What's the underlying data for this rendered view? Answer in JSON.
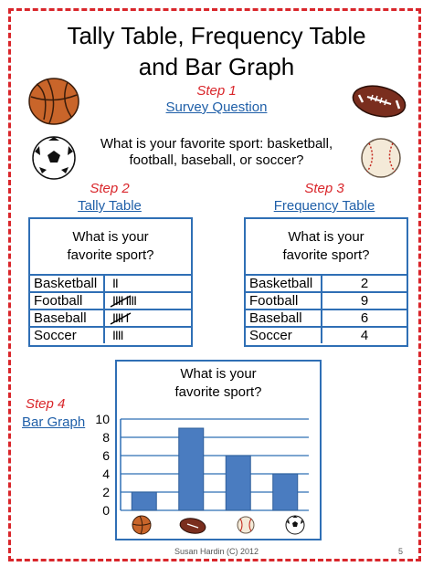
{
  "header": {
    "title_line1": "Tally Table, Frequency Table",
    "title_line2": "and Bar Graph"
  },
  "step1": {
    "label": "Step 1",
    "link": "Survey Question",
    "question_line1": "What is your favorite sport:  basketball,",
    "question_line2": "football, baseball, or soccer?"
  },
  "step2": {
    "label": "Step 2",
    "link": "Tally Table",
    "heading_line1": "What is your",
    "heading_line2": "favorite sport?",
    "rows": [
      {
        "sport": "Basketball",
        "tally": "II"
      },
      {
        "sport": "Football",
        "tally": "IIII  IIII"
      },
      {
        "sport": "Baseball",
        "tally": "IIII  I"
      },
      {
        "sport": "Soccer",
        "tally": "IIII"
      }
    ]
  },
  "step3": {
    "label": "Step 3",
    "link": "Frequency Table",
    "heading_line1": "What is your",
    "heading_line2": "favorite sport?",
    "rows": [
      {
        "sport": "Basketball",
        "count": "2"
      },
      {
        "sport": "Football",
        "count": "9"
      },
      {
        "sport": "Baseball",
        "count": "6"
      },
      {
        "sport": "Soccer",
        "count": "4"
      }
    ]
  },
  "step4": {
    "label": "Step 4",
    "link": "Bar  Graph",
    "heading_line1": "What is your",
    "heading_line2": "favorite sport?"
  },
  "chart_data": {
    "type": "bar",
    "categories": [
      "basketball",
      "football",
      "baseball",
      "soccer"
    ],
    "values": [
      2,
      9,
      6,
      4
    ],
    "title": "What is your favorite sport?",
    "yticks": [
      0,
      2,
      4,
      6,
      8,
      10
    ],
    "ylim": [
      0,
      10
    ],
    "grid": true,
    "bar_color": "#4a7cc0"
  },
  "footer": {
    "credit": "Susan Hardin (C) 2012",
    "page": "5"
  },
  "colors": {
    "border": "#d9262b",
    "step": "#d9262b",
    "link": "#1f5fa8",
    "table_border": "#2f6fb5"
  },
  "icons": [
    "basketball-icon",
    "football-icon",
    "soccer-ball-icon",
    "baseball-icon"
  ]
}
